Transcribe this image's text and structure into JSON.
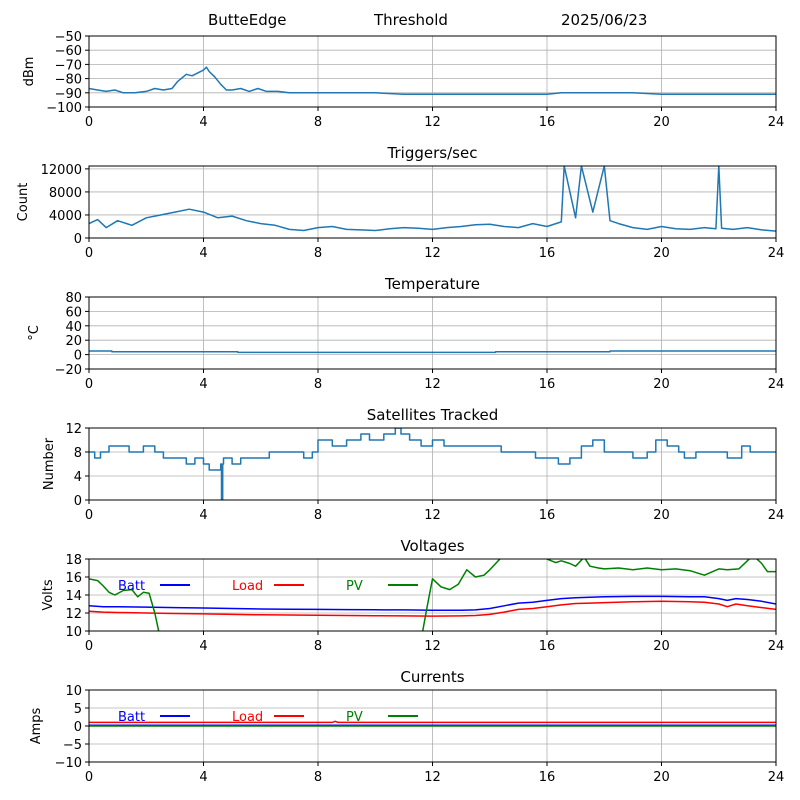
{
  "header": {
    "station": "ButteEdge",
    "product": "Threshold",
    "date": "2025/06/23"
  },
  "chart_data": [
    {
      "type": "line",
      "title": "",
      "ylabel": "dBm",
      "xlabel": "",
      "xlim": [
        0,
        24
      ],
      "ylim": [
        -100,
        -50
      ],
      "xticks": [
        0,
        4,
        8,
        12,
        16,
        20,
        24
      ],
      "yticks": [
        -100,
        -90,
        -80,
        -70,
        -60,
        -50
      ],
      "grid": true,
      "series": [
        {
          "color": "#1f77b4",
          "x": [
            0,
            0.3,
            0.6,
            0.9,
            1.2,
            1.6,
            2.0,
            2.3,
            2.6,
            2.9,
            3.1,
            3.4,
            3.6,
            3.8,
            4.0,
            4.1,
            4.2,
            4.4,
            4.6,
            4.8,
            5.0,
            5.3,
            5.6,
            5.9,
            6.2,
            6.6,
            7.0,
            7.5,
            8,
            9,
            10,
            11,
            12,
            13,
            14,
            15,
            16,
            16.5,
            17,
            18,
            19,
            20,
            21,
            22,
            23,
            24
          ],
          "y": [
            -87,
            -88,
            -89,
            -88,
            -90,
            -90,
            -89,
            -87,
            -88,
            -87,
            -82,
            -77,
            -78,
            -76,
            -74,
            -72,
            -75,
            -79,
            -84,
            -88,
            -88,
            -87,
            -89,
            -87,
            -89,
            -89,
            -90,
            -90,
            -90,
            -90,
            -90,
            -91,
            -91,
            -91,
            -91,
            -91,
            -91,
            -90,
            -90,
            -90,
            -90,
            -91,
            -91,
            -91,
            -91,
            -91
          ]
        }
      ]
    },
    {
      "type": "line",
      "title": "Triggers/sec",
      "ylabel": "Count",
      "xlabel": "",
      "xlim": [
        0,
        24
      ],
      "ylim": [
        0,
        12500
      ],
      "xticks": [
        0,
        4,
        8,
        12,
        16,
        20,
        24
      ],
      "yticks": [
        0,
        4000,
        8000,
        12000
      ],
      "grid": true,
      "series": [
        {
          "color": "#1f77b4",
          "x": [
            0,
            0.3,
            0.6,
            1.0,
            1.5,
            2.0,
            2.5,
            3.0,
            3.5,
            4.0,
            4.5,
            5.0,
            5.5,
            6.0,
            6.5,
            7.0,
            7.5,
            8.0,
            8.5,
            9.0,
            9.5,
            10.0,
            10.5,
            11.0,
            11.5,
            12.0,
            12.5,
            13.0,
            13.5,
            14.0,
            14.5,
            15.0,
            15.5,
            16.0,
            16.5,
            16.6,
            17.0,
            17.2,
            17.6,
            18.0,
            18.2,
            18.5,
            19.0,
            19.5,
            20.0,
            20.5,
            21.0,
            21.5,
            21.9,
            22.0,
            22.1,
            22.5,
            23.0,
            23.5,
            24.0
          ],
          "y": [
            2500,
            3200,
            1800,
            3000,
            2200,
            3500,
            4000,
            4500,
            5000,
            4500,
            3500,
            3800,
            3000,
            2500,
            2200,
            1500,
            1300,
            1800,
            2000,
            1500,
            1400,
            1300,
            1600,
            1800,
            1700,
            1500,
            1800,
            2000,
            2300,
            2400,
            2000,
            1800,
            2500,
            2000,
            2800,
            12500,
            3500,
            12500,
            4500,
            12500,
            3000,
            2500,
            1800,
            1500,
            2000,
            1600,
            1500,
            1800,
            1600,
            12500,
            1700,
            1500,
            1800,
            1400,
            1200
          ]
        }
      ]
    },
    {
      "type": "line",
      "title": "Temperature",
      "ylabel": "°C",
      "xlabel": "",
      "xlim": [
        0,
        24
      ],
      "ylim": [
        -20,
        80
      ],
      "xticks": [
        0,
        4,
        8,
        12,
        16,
        20,
        24
      ],
      "yticks": [
        -20,
        0,
        20,
        40,
        60,
        80
      ],
      "grid": true,
      "series": [
        {
          "color": "#1f77b4",
          "x": [
            0,
            0.8,
            0.8,
            5.2,
            5.2,
            14.2,
            14.2,
            18.2,
            18.2,
            24
          ],
          "y": [
            5,
            5,
            4,
            4,
            3,
            3,
            4,
            4,
            5,
            5
          ]
        }
      ]
    },
    {
      "type": "line",
      "title": "Satellites Tracked",
      "ylabel": "Number",
      "xlabel": "",
      "xlim": [
        0,
        24
      ],
      "ylim": [
        0,
        12
      ],
      "xticks": [
        0,
        4,
        8,
        12,
        16,
        20,
        24
      ],
      "yticks": [
        0,
        4,
        8,
        12
      ],
      "grid": true,
      "series": [
        {
          "color": "#1f77b4",
          "step": true,
          "x": [
            0,
            0.2,
            0.4,
            0.7,
            1.4,
            1.9,
            2.3,
            2.6,
            3.0,
            3.4,
            3.7,
            4.0,
            4.2,
            4.6,
            4.63,
            4.67,
            4.7,
            5.0,
            5.3,
            5.8,
            6.3,
            7.0,
            7.5,
            7.8,
            8.0,
            8.5,
            9.0,
            9.3,
            9.5,
            9.8,
            10.3,
            10.7,
            10.9,
            11.2,
            11.6,
            12.0,
            12.4,
            13.0,
            13.6,
            14.4,
            14.9,
            15.6,
            16.4,
            16.8,
            17.2,
            17.6,
            18.0,
            18.4,
            19.0,
            19.5,
            19.8,
            20.2,
            20.6,
            20.8,
            21.2,
            21.8,
            22.3,
            22.8,
            23.1,
            23.4,
            23.8,
            24.0
          ],
          "y": [
            8,
            7,
            8,
            9,
            8,
            9,
            8,
            7,
            7,
            6,
            7,
            6,
            5,
            6,
            0,
            6,
            7,
            6,
            7,
            7,
            8,
            8,
            7,
            8,
            10,
            9,
            10,
            10,
            11,
            10,
            11,
            12,
            11,
            10,
            9,
            10,
            9,
            9,
            9,
            8,
            8,
            7,
            6,
            7,
            9,
            10,
            8,
            8,
            7,
            8,
            10,
            9,
            8,
            7,
            8,
            8,
            7,
            9,
            8,
            8,
            8,
            8
          ]
        }
      ]
    },
    {
      "type": "line",
      "title": "Voltages",
      "ylabel": "Volts",
      "xlabel": "",
      "xlim": [
        0,
        24
      ],
      "ylim": [
        10,
        18
      ],
      "xticks": [
        0,
        4,
        8,
        12,
        16,
        20,
        24
      ],
      "yticks": [
        10,
        12,
        14,
        16,
        18
      ],
      "grid": true,
      "legend": "top-left, inline",
      "series": [
        {
          "name": "Batt",
          "color": "#0000ff",
          "x": [
            0,
            0.5,
            1,
            2,
            3,
            4,
            5,
            6,
            7,
            8,
            9,
            10,
            11,
            12,
            13,
            13.5,
            14,
            14.5,
            15,
            15.5,
            16,
            16.5,
            17,
            17.5,
            18,
            19,
            20,
            21,
            21.5,
            22,
            22.3,
            22.6,
            23,
            23.5,
            24
          ],
          "y": [
            12.8,
            12.7,
            12.7,
            12.65,
            12.6,
            12.55,
            12.5,
            12.45,
            12.42,
            12.4,
            12.38,
            12.36,
            12.35,
            12.3,
            12.3,
            12.35,
            12.5,
            12.8,
            13.1,
            13.2,
            13.4,
            13.6,
            13.7,
            13.75,
            13.8,
            13.85,
            13.85,
            13.8,
            13.8,
            13.6,
            13.4,
            13.6,
            13.5,
            13.3,
            13.0
          ]
        },
        {
          "name": "Load",
          "color": "#ff0000",
          "x": [
            0,
            0.5,
            1,
            2,
            3,
            4,
            5,
            6,
            7,
            8,
            9,
            10,
            11,
            12,
            13,
            13.5,
            14,
            14.5,
            15,
            15.5,
            16,
            16.5,
            17,
            17.5,
            18,
            19,
            20,
            21,
            21.5,
            22,
            22.3,
            22.6,
            23,
            23.5,
            24
          ],
          "y": [
            12.2,
            12.1,
            12.05,
            12.0,
            11.95,
            11.9,
            11.85,
            11.8,
            11.78,
            11.75,
            11.72,
            11.7,
            11.68,
            11.65,
            11.68,
            11.72,
            11.85,
            12.1,
            12.4,
            12.5,
            12.7,
            12.9,
            13.05,
            13.1,
            13.15,
            13.25,
            13.3,
            13.25,
            13.2,
            13.0,
            12.7,
            13.0,
            12.8,
            12.6,
            12.4
          ]
        },
        {
          "name": "PV",
          "color": "#008000",
          "x": [
            0,
            0.3,
            0.5,
            0.7,
            0.9,
            1.2,
            1.5,
            1.7,
            1.9,
            2.1,
            2.3,
            2.5,
            2.9,
            11.6,
            11.8,
            12.0,
            12.3,
            12.6,
            12.9,
            13.2,
            13.5,
            13.8,
            14.0,
            14.5,
            15.0,
            15.5,
            15.7,
            16.0,
            16.3,
            16.5,
            16.8,
            17.0,
            17.3,
            17.5,
            17.8,
            18.0,
            18.5,
            19.0,
            19.5,
            20.0,
            20.5,
            21.0,
            21.5,
            22.0,
            22.3,
            22.7,
            23.2,
            23.5,
            23.7,
            24.0
          ],
          "y": [
            15.8,
            15.6,
            15.0,
            14.3,
            14.0,
            14.5,
            14.6,
            13.8,
            14.3,
            14.2,
            12.0,
            9.0,
            9.0,
            9.0,
            12.5,
            15.8,
            14.9,
            14.6,
            15.2,
            16.8,
            16.0,
            16.2,
            16.8,
            18.5,
            18.5,
            18.5,
            18.5,
            18.0,
            17.6,
            17.8,
            17.5,
            17.2,
            18.2,
            17.2,
            17.0,
            16.9,
            17.0,
            16.8,
            17.0,
            16.8,
            16.9,
            16.7,
            16.2,
            16.9,
            16.8,
            16.9,
            18.4,
            17.5,
            16.6,
            16.6
          ]
        }
      ]
    },
    {
      "type": "line",
      "title": "Currents",
      "ylabel": "Amps",
      "xlabel": "",
      "xlim": [
        0,
        24
      ],
      "ylim": [
        -10,
        10
      ],
      "xticks": [
        0,
        4,
        8,
        12,
        16,
        20,
        24
      ],
      "yticks": [
        -10,
        -5,
        0,
        5,
        10
      ],
      "grid": true,
      "legend": "top-left, inline",
      "series": [
        {
          "name": "Batt",
          "color": "#0000ff",
          "x": [
            0,
            24
          ],
          "y": [
            0.2,
            0.2
          ]
        },
        {
          "name": "Load",
          "color": "#ff0000",
          "x": [
            0,
            8.5,
            8.6,
            8.7,
            24
          ],
          "y": [
            1.0,
            1.0,
            1.3,
            1.0,
            1.0
          ]
        },
        {
          "name": "PV",
          "color": "#008000",
          "x": [
            0,
            24
          ],
          "y": [
            0.0,
            0.0
          ]
        }
      ]
    }
  ]
}
